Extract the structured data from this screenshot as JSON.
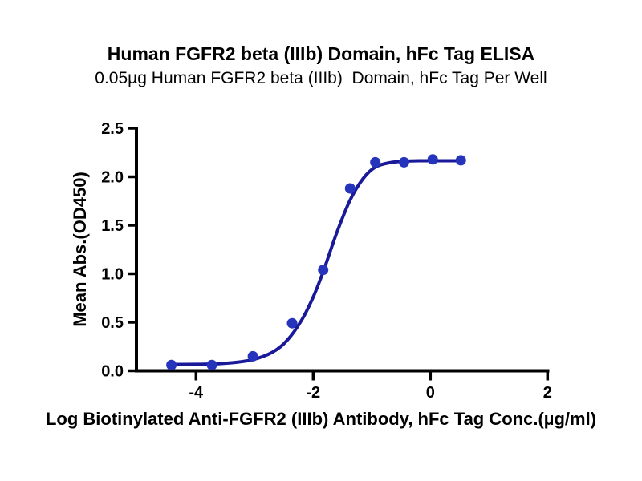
{
  "chart_data": {
    "type": "scatter",
    "title": "Human FGFR2 beta (IIIb) Domain, hFc Tag ELISA",
    "subtitle": "0.05µg Human FGFR2 beta (IIIb)  Domain, hFc Tag Per Well",
    "xlabel": "Log Biotinylated Anti-FGFR2 (IIIb) Antibody, hFc Tag Conc.(µg/ml)",
    "ylabel": "Mean Abs.(OD450)",
    "xlim": [
      -5,
      2
    ],
    "ylim": [
      0,
      2.5
    ],
    "x_ticks": [
      -4,
      -2,
      0,
      2
    ],
    "x_tick_labels": [
      "-4",
      "-2",
      "0",
      "2"
    ],
    "y_ticks": [
      0,
      0.5,
      1,
      1.5,
      2,
      2.5
    ],
    "y_tick_labels": [
      "0.0",
      "0.5",
      "1.0",
      "1.5",
      "2.0",
      "2.5"
    ],
    "grid": false,
    "legend": "none",
    "series": [
      {
        "name": "Biotinylated Anti-FGFR2 (IIIb) Antibody, hFc Tag",
        "points": [
          {
            "x": -4.42,
            "y": 0.06
          },
          {
            "x": -3.73,
            "y": 0.06
          },
          {
            "x": -3.03,
            "y": 0.15
          },
          {
            "x": -2.36,
            "y": 0.49
          },
          {
            "x": -1.83,
            "y": 1.04
          },
          {
            "x": -1.37,
            "y": 1.88
          },
          {
            "x": -0.94,
            "y": 2.15
          },
          {
            "x": -0.45,
            "y": 2.15
          },
          {
            "x": 0.04,
            "y": 2.18
          },
          {
            "x": 0.52,
            "y": 2.17
          }
        ]
      }
    ],
    "fit_curve": [
      {
        "x": -4.42,
        "y": 0.065
      },
      {
        "x": -4.0,
        "y": 0.067
      },
      {
        "x": -3.73,
        "y": 0.07
      },
      {
        "x": -3.35,
        "y": 0.085
      },
      {
        "x": -3.03,
        "y": 0.115
      },
      {
        "x": -2.7,
        "y": 0.19
      },
      {
        "x": -2.45,
        "y": 0.31
      },
      {
        "x": -2.2,
        "y": 0.52
      },
      {
        "x": -2.0,
        "y": 0.76
      },
      {
        "x": -1.83,
        "y": 1.02
      },
      {
        "x": -1.6,
        "y": 1.42
      },
      {
        "x": -1.37,
        "y": 1.76
      },
      {
        "x": -1.15,
        "y": 1.98
      },
      {
        "x": -0.94,
        "y": 2.1
      },
      {
        "x": -0.7,
        "y": 2.145
      },
      {
        "x": -0.45,
        "y": 2.16
      },
      {
        "x": -0.2,
        "y": 2.165
      },
      {
        "x": 0.04,
        "y": 2.165
      },
      {
        "x": 0.3,
        "y": 2.165
      },
      {
        "x": 0.52,
        "y": 2.165
      }
    ],
    "colors": {
      "marker": "#2633bb",
      "fit_line": "#191999",
      "axis": "#000000",
      "text": "#000000",
      "background": "#ffffff"
    }
  }
}
